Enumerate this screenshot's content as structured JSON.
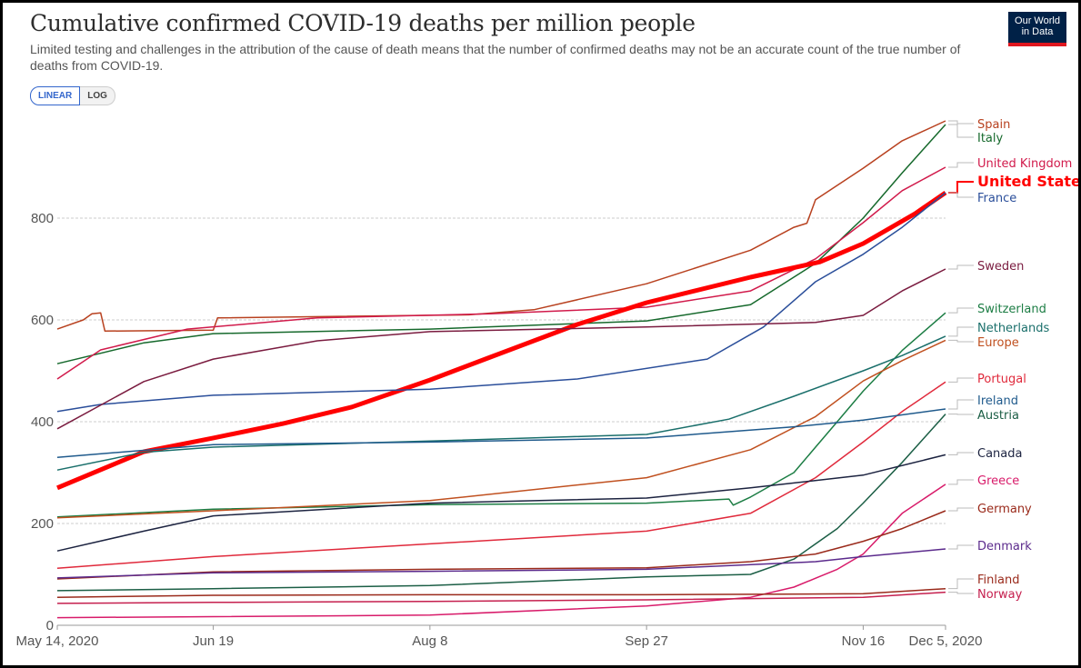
{
  "header": {
    "title": "Cumulative confirmed COVID-19 deaths per million people",
    "subtitle": "Limited testing and challenges in the attribution of the cause of death means that the number of confirmed deaths may not be an accurate count of the true number of deaths from COVID-19.",
    "logo": [
      "Our World",
      "in Data"
    ],
    "scale_buttons": {
      "linear": "LINEAR",
      "log": "LOG",
      "selected": "LINEAR"
    }
  },
  "chart_data": {
    "type": "line",
    "title": "Cumulative confirmed COVID-19 deaths per million people",
    "x_unit": "days since May 14, 2020",
    "xlim": [
      0,
      205
    ],
    "ylim": [
      0,
      1000
    ],
    "x_ticks": [
      {
        "day": 0,
        "label": "May 14, 2020"
      },
      {
        "day": 36,
        "label": "Jun 19"
      },
      {
        "day": 86,
        "label": "Aug 8"
      },
      {
        "day": 136,
        "label": "Sep 27"
      },
      {
        "day": 186,
        "label": "Nov 16"
      },
      {
        "day": 205,
        "label": "Dec 5, 2020"
      }
    ],
    "y_ticks": [
      0,
      200,
      400,
      600,
      800
    ],
    "grid": true,
    "series": [
      {
        "name": "Spain",
        "color": "#b8411f",
        "points": [
          [
            0,
            582
          ],
          [
            6,
            600
          ],
          [
            8,
            612
          ],
          [
            10,
            614
          ],
          [
            11,
            578
          ],
          [
            36,
            580
          ],
          [
            37,
            604
          ],
          [
            95,
            610
          ],
          [
            110,
            620
          ],
          [
            136,
            671
          ],
          [
            160,
            737
          ],
          [
            170,
            782
          ],
          [
            173,
            790
          ],
          [
            175,
            836
          ],
          [
            186,
            898
          ],
          [
            195,
            952
          ],
          [
            205,
            991
          ]
        ]
      },
      {
        "name": "Italy",
        "color": "#16692c",
        "points": [
          [
            0,
            514
          ],
          [
            20,
            555
          ],
          [
            36,
            573
          ],
          [
            86,
            582
          ],
          [
            136,
            598
          ],
          [
            160,
            630
          ],
          [
            175,
            711
          ],
          [
            186,
            800
          ],
          [
            195,
            889
          ],
          [
            205,
            984
          ]
        ]
      },
      {
        "name": "United Kingdom",
        "color": "#d11a4b",
        "points": [
          [
            0,
            484
          ],
          [
            10,
            541
          ],
          [
            30,
            582
          ],
          [
            60,
            604
          ],
          [
            100,
            612
          ],
          [
            136,
            625
          ],
          [
            160,
            657
          ],
          [
            175,
            720
          ],
          [
            186,
            791
          ],
          [
            195,
            854
          ],
          [
            205,
            900
          ]
        ]
      },
      {
        "name": "United States",
        "color": "#ff0000",
        "highlight": true,
        "points": [
          [
            0,
            270
          ],
          [
            20,
            341
          ],
          [
            36,
            368
          ],
          [
            52,
            396
          ],
          [
            68,
            429
          ],
          [
            86,
            482
          ],
          [
            100,
            527
          ],
          [
            120,
            591
          ],
          [
            136,
            634
          ],
          [
            160,
            684
          ],
          [
            176,
            714
          ],
          [
            186,
            750
          ],
          [
            198,
            809
          ],
          [
            205,
            850
          ]
        ]
      },
      {
        "name": "France",
        "color": "#2a4e9a",
        "points": [
          [
            0,
            420
          ],
          [
            10,
            434
          ],
          [
            36,
            452
          ],
          [
            86,
            464
          ],
          [
            120,
            484
          ],
          [
            150,
            523
          ],
          [
            163,
            586
          ],
          [
            175,
            675
          ],
          [
            186,
            729
          ],
          [
            195,
            782
          ],
          [
            205,
            850
          ]
        ]
      },
      {
        "name": "Sweden",
        "color": "#7a1b3f",
        "points": [
          [
            0,
            386
          ],
          [
            20,
            479
          ],
          [
            36,
            523
          ],
          [
            60,
            559
          ],
          [
            86,
            577
          ],
          [
            136,
            586
          ],
          [
            175,
            595
          ],
          [
            186,
            609
          ],
          [
            195,
            657
          ],
          [
            205,
            700
          ]
        ]
      },
      {
        "name": "Switzerland",
        "color": "#1c7d44",
        "points": [
          [
            0,
            213
          ],
          [
            36,
            228
          ],
          [
            86,
            237
          ],
          [
            136,
            240
          ],
          [
            155,
            248
          ],
          [
            156,
            236
          ],
          [
            160,
            252
          ],
          [
            170,
            300
          ],
          [
            175,
            350
          ],
          [
            180,
            400
          ],
          [
            186,
            460
          ],
          [
            195,
            540
          ],
          [
            205,
            614
          ]
        ]
      },
      {
        "name": "Netherlands",
        "color": "#1a6f6b",
        "points": [
          [
            0,
            305
          ],
          [
            20,
            340
          ],
          [
            36,
            350
          ],
          [
            86,
            362
          ],
          [
            136,
            375
          ],
          [
            155,
            405
          ],
          [
            170,
            450
          ],
          [
            186,
            500
          ],
          [
            195,
            530
          ],
          [
            205,
            568
          ]
        ]
      },
      {
        "name": "Europe",
        "color": "#c0501f",
        "points": [
          [
            0,
            211
          ],
          [
            36,
            225
          ],
          [
            86,
            245
          ],
          [
            136,
            290
          ],
          [
            160,
            345
          ],
          [
            175,
            410
          ],
          [
            186,
            480
          ],
          [
            195,
            520
          ],
          [
            205,
            560
          ]
        ]
      },
      {
        "name": "Portugal",
        "color": "#e0293b",
        "points": [
          [
            0,
            112
          ],
          [
            36,
            135
          ],
          [
            86,
            160
          ],
          [
            136,
            185
          ],
          [
            160,
            220
          ],
          [
            175,
            290
          ],
          [
            186,
            360
          ],
          [
            195,
            420
          ],
          [
            205,
            478
          ]
        ]
      },
      {
        "name": "Ireland",
        "color": "#1f5a8c",
        "points": [
          [
            0,
            330
          ],
          [
            36,
            355
          ],
          [
            86,
            360
          ],
          [
            136,
            368
          ],
          [
            170,
            390
          ],
          [
            186,
            403
          ],
          [
            205,
            425
          ]
        ]
      },
      {
        "name": "Austria",
        "color": "#1b5e45",
        "points": [
          [
            0,
            68
          ],
          [
            36,
            72
          ],
          [
            86,
            78
          ],
          [
            136,
            95
          ],
          [
            160,
            100
          ],
          [
            170,
            130
          ],
          [
            180,
            190
          ],
          [
            186,
            240
          ],
          [
            195,
            320
          ],
          [
            205,
            415
          ]
        ]
      },
      {
        "name": "Canada",
        "color": "#1c2340",
        "points": [
          [
            0,
            146
          ],
          [
            20,
            185
          ],
          [
            36,
            215
          ],
          [
            86,
            240
          ],
          [
            136,
            250
          ],
          [
            160,
            270
          ],
          [
            186,
            295
          ],
          [
            205,
            335
          ]
        ]
      },
      {
        "name": "Greece",
        "color": "#d81b6a",
        "points": [
          [
            0,
            15
          ],
          [
            36,
            17
          ],
          [
            86,
            20
          ],
          [
            136,
            38
          ],
          [
            160,
            55
          ],
          [
            170,
            75
          ],
          [
            180,
            110
          ],
          [
            186,
            140
          ],
          [
            195,
            220
          ],
          [
            205,
            277
          ]
        ]
      },
      {
        "name": "Germany",
        "color": "#9a2a1b",
        "points": [
          [
            0,
            91
          ],
          [
            36,
            105
          ],
          [
            86,
            110
          ],
          [
            136,
            113
          ],
          [
            160,
            125
          ],
          [
            175,
            140
          ],
          [
            186,
            165
          ],
          [
            195,
            190
          ],
          [
            205,
            225
          ]
        ]
      },
      {
        "name": "Denmark",
        "color": "#5b2a8c",
        "points": [
          [
            0,
            93
          ],
          [
            36,
            103
          ],
          [
            86,
            106
          ],
          [
            136,
            110
          ],
          [
            175,
            125
          ],
          [
            186,
            135
          ],
          [
            205,
            150
          ]
        ]
      },
      {
        "name": "Finland",
        "color": "#9a2a1b",
        "points": [
          [
            0,
            55
          ],
          [
            36,
            59
          ],
          [
            86,
            60
          ],
          [
            136,
            60
          ],
          [
            186,
            62
          ],
          [
            205,
            72
          ]
        ]
      },
      {
        "name": "Norway",
        "color": "#c51f4e",
        "points": [
          [
            0,
            43
          ],
          [
            36,
            45
          ],
          [
            86,
            47
          ],
          [
            136,
            50
          ],
          [
            186,
            55
          ],
          [
            205,
            65
          ]
        ]
      }
    ]
  }
}
